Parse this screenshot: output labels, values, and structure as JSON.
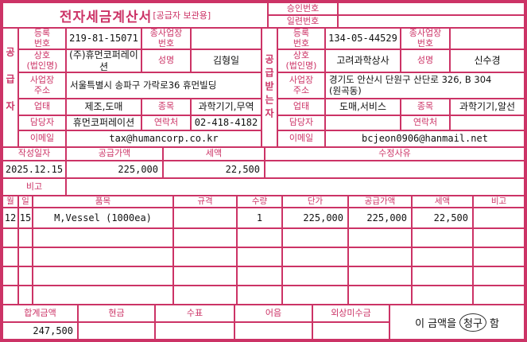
{
  "colors": {
    "accent": "#cc3366",
    "text": "#111111",
    "background": "#ffffff"
  },
  "title": {
    "main": "전자세금계산서",
    "sub": "[공급자 보관용]"
  },
  "approval": {
    "approval_label": "승인번호",
    "approval_value": "",
    "serial_label": "일련번호",
    "serial_value": ""
  },
  "party_labels": {
    "reg": "등록\n번호",
    "sub_biz": "종사업장\n번호",
    "company": "상호\n(법인명)",
    "name": "성명",
    "address": "사업장\n주소",
    "biz_type": "업태",
    "item_type": "종목",
    "contact_person": "담당자",
    "contact": "연락처",
    "email": "이메일"
  },
  "supplier": {
    "side_label": "공급자",
    "reg_no": "219-81-15071",
    "sub_biz_no": "",
    "company": "(주)휴먼코퍼레이션",
    "name": "김형일",
    "address": "서울특별시 송파구 가락로36 휴먼빌딩",
    "biz_type": "제조,도매",
    "item_type": "과학기기,무역",
    "contact_person": "휴먼코퍼레이션",
    "contact": "02-418-4182",
    "email": "tax@humancorp.co.kr"
  },
  "buyer": {
    "side_label": "공급받는자",
    "reg_no": "134-05-44529",
    "sub_biz_no": "",
    "company": "고려과학상사",
    "name": "신수경",
    "address": "경기도 안산시 단원구 산단로 326, B 304\n(원곡동)",
    "biz_type": "도매,서비스",
    "item_type": "과학기기,알선",
    "contact_person": "",
    "contact": "",
    "email": "bcjeon0906@hanmail.net"
  },
  "summary": {
    "date_label": "작성일자",
    "date": "2025.12.15",
    "supply_label": "공급가액",
    "supply": "225,000",
    "tax_label": "세액",
    "tax": "22,500",
    "revision_label": "수정사유",
    "revision": "",
    "remark_label": "비고",
    "remark": ""
  },
  "items": {
    "headers": {
      "month": "월",
      "day": "일",
      "name": "품목",
      "spec": "규격",
      "qty": "수량",
      "unit_price": "단가",
      "supply": "공급가액",
      "tax": "세액",
      "note": "비고"
    },
    "rows": [
      {
        "month": "12",
        "day": "15",
        "name": "M,Vessel (1000ea)",
        "spec": "",
        "qty": "1",
        "unit_price": "225,000",
        "supply": "225,000",
        "tax": "22,500",
        "note": ""
      }
    ]
  },
  "totals": {
    "total_label": "합계금액",
    "total": "247,500",
    "cash_label": "현금",
    "cash": "",
    "check_label": "수표",
    "check": "",
    "note_label": "어음",
    "note": "",
    "receivable_label": "외상미수금",
    "receivable": "",
    "claim_prefix": "이 금액을",
    "claim_circled": "청구",
    "claim_suffix": "함"
  }
}
